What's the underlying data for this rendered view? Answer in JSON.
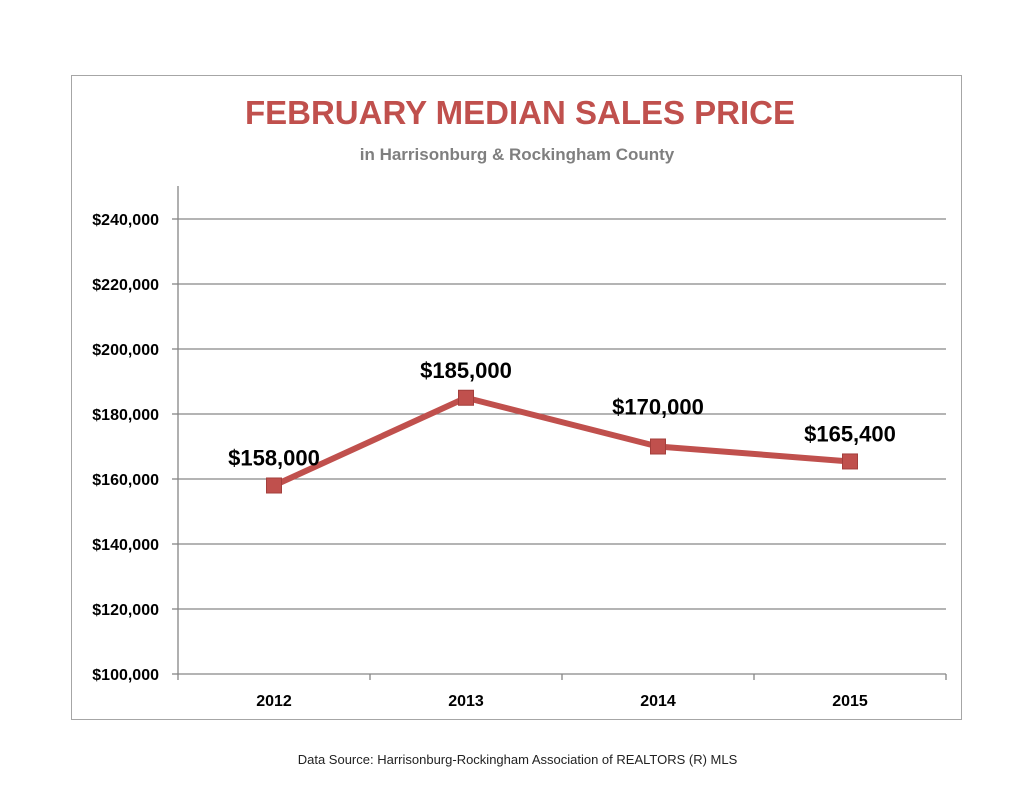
{
  "chart_data": {
    "type": "line",
    "title": "FEBRUARY MEDIAN SALES PRICE",
    "subtitle": "in Harrisonburg  & Rockingham County",
    "categories": [
      "2012",
      "2013",
      "2014",
      "2015"
    ],
    "series": [
      {
        "values": [
          158000,
          185000,
          170000,
          165400
        ],
        "labels": [
          "$158,000",
          "$185,000",
          "$170,000",
          "$165,400"
        ],
        "color": "#c0504d"
      }
    ],
    "ylim": [
      100000,
      240000
    ],
    "yticks": [
      100000,
      120000,
      140000,
      160000,
      180000,
      200000,
      220000,
      240000
    ],
    "ytick_labels": [
      "$100,000",
      "$120,000",
      "$140,000",
      "$160,000",
      "$180,000",
      "$200,000",
      "$220,000",
      "$240,000"
    ],
    "grid": true,
    "legend": "none",
    "title_color": "#c0504d",
    "subtitle_color": "#7f7f7f",
    "gridline_color": "#868686"
  },
  "footer": {
    "source": "Data Source: Harrisonburg-Rockingham Association of REALTORS (R) MLS"
  }
}
